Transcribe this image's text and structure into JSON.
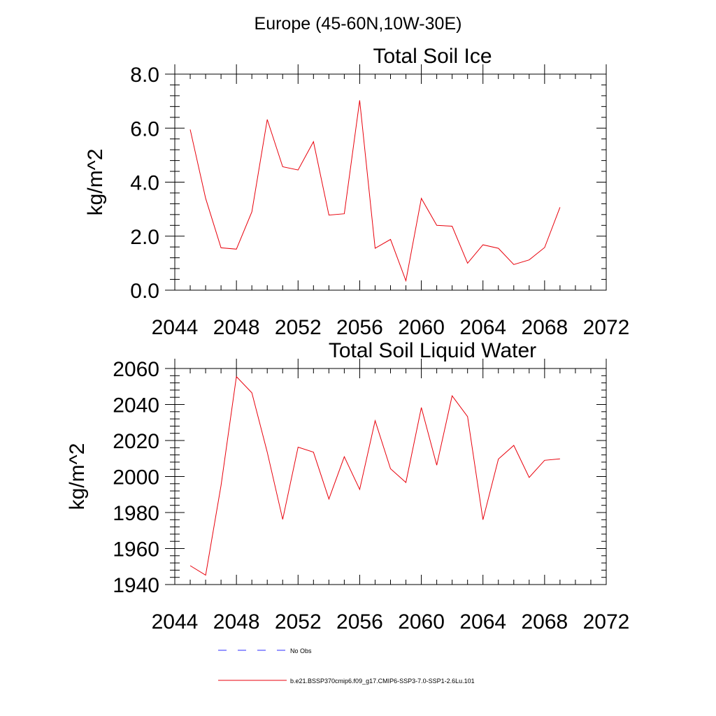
{
  "figure_title": "Europe (45-60N,10W-30E)",
  "chart_data": [
    {
      "type": "line",
      "title": "Total Soil Ice",
      "xlabel": "",
      "ylabel": "kg/m^2",
      "xlim": [
        2044,
        2072
      ],
      "ylim": [
        0,
        8
      ],
      "xticks": [
        2044,
        2048,
        2052,
        2056,
        2060,
        2064,
        2068,
        2072
      ],
      "xtick_labels": [
        "2044",
        "2048",
        "2052",
        "2056",
        "2060",
        "2064",
        "2068",
        "2072"
      ],
      "yticks": [
        0,
        2,
        4,
        6,
        8
      ],
      "ytick_labels": [
        "0.0",
        "2.0",
        "4.0",
        "6.0",
        "8.0"
      ],
      "grid": false,
      "series": [
        {
          "color": "#e8000b",
          "x": [
            2045,
            2046,
            2047,
            2048,
            2049,
            2050,
            2051,
            2052,
            2053,
            2054,
            2055,
            2056,
            2057,
            2058,
            2059,
            2060,
            2061,
            2062,
            2063,
            2064,
            2065,
            2066,
            2067,
            2068,
            2069
          ],
          "y": [
            5.95,
            3.4,
            1.57,
            1.52,
            2.9,
            6.32,
            4.57,
            4.45,
            5.5,
            2.78,
            2.83,
            7.03,
            1.55,
            1.88,
            0.35,
            3.4,
            2.4,
            2.37,
            1.0,
            1.68,
            1.55,
            0.95,
            1.12,
            1.58,
            3.07
          ]
        }
      ]
    },
    {
      "type": "line",
      "title": "Total Soil Liquid Water",
      "xlabel": "",
      "ylabel": "kg/m^2",
      "xlim": [
        2044,
        2072
      ],
      "ylim": [
        1940,
        2060
      ],
      "xticks": [
        2044,
        2048,
        2052,
        2056,
        2060,
        2064,
        2068,
        2072
      ],
      "xtick_labels": [
        "2044",
        "2048",
        "2052",
        "2056",
        "2060",
        "2064",
        "2068",
        "2072"
      ],
      "yticks": [
        1940,
        1960,
        1980,
        2000,
        2020,
        2040,
        2060
      ],
      "ytick_labels": [
        "1940",
        "1960",
        "1980",
        "2000",
        "2020",
        "2040",
        "2060"
      ],
      "grid": false,
      "series": [
        {
          "color": "#e8000b",
          "x": [
            2045,
            2046,
            2047,
            2048,
            2049,
            2050,
            2051,
            2052,
            2053,
            2054,
            2055,
            2056,
            2057,
            2058,
            2059,
            2060,
            2061,
            2062,
            2063,
            2064,
            2065,
            2066,
            2067,
            2068,
            2069
          ],
          "y": [
            1950.5,
            1945.2,
            1995.0,
            2055.5,
            2046.5,
            2013.5,
            1976.2,
            2016.3,
            2013.5,
            1987.5,
            2011.0,
            1992.8,
            2031.0,
            2004.3,
            1996.7,
            2038.3,
            2006.3,
            2044.8,
            2033.3,
            1976.0,
            2009.7,
            2017.3,
            1999.5,
            2009.0,
            2009.8
          ]
        }
      ]
    }
  ],
  "legend": {
    "placement": "bottom",
    "items": [
      {
        "label": "No Obs",
        "color": "#2b2bff",
        "dash": "12,16"
      },
      {
        "label": "b.e21.BSSP370cmip6.f09_g17.CMIP6-SSP3-7.0-SSP1-2.6Lu.101",
        "color": "#e8000b",
        "dash": ""
      }
    ]
  }
}
